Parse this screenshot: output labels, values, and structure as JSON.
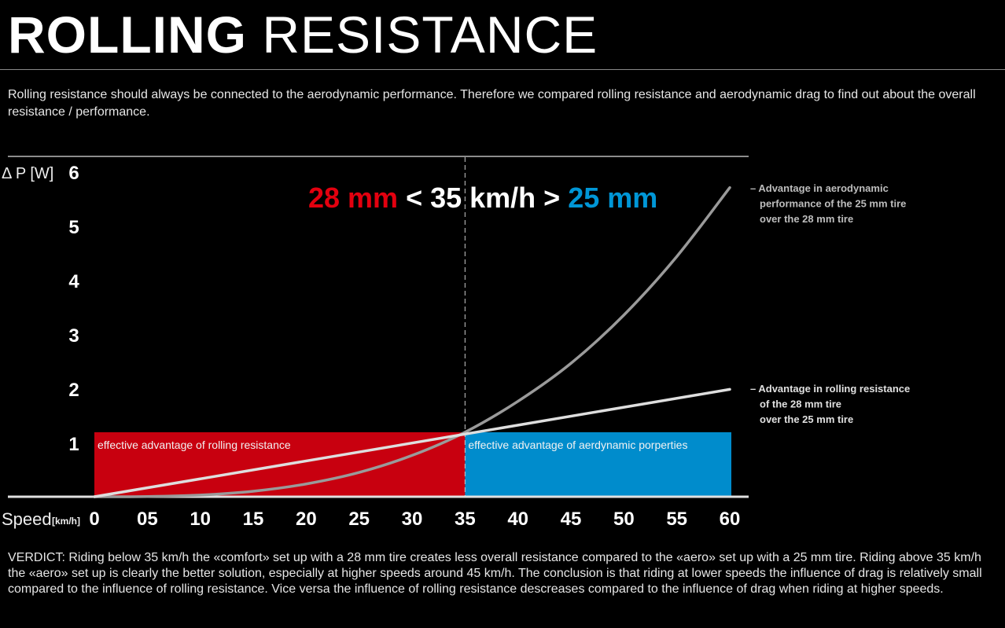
{
  "header": {
    "title_bold": "ROLLING",
    "title_light": "RESISTANCE",
    "intro": "Rolling resistance should always be connected to the aerodynamic performance. Therefore we compared rolling resistance and aerodynamic drag to find out about the overall resistance / performance."
  },
  "chart_data": {
    "type": "line",
    "ylabel": "Δ P [W]",
    "xlabel": "Speed",
    "xlabel_unit": "[km/h]",
    "xlim": [
      0,
      60
    ],
    "ylim": [
      0,
      6
    ],
    "x_ticks": [
      "0",
      "05",
      "10",
      "15",
      "20",
      "25",
      "30",
      "35",
      "40",
      "45",
      "50",
      "55",
      "60"
    ],
    "x_tick_values": [
      0,
      5,
      10,
      15,
      20,
      25,
      30,
      35,
      40,
      45,
      50,
      55,
      60
    ],
    "y_ticks": [
      1,
      2,
      3,
      4,
      5,
      6
    ],
    "grid": false,
    "headline": {
      "left": "28 mm",
      "middle": " < 35 km/h > ",
      "right": "25 mm"
    },
    "threshold_x": 35,
    "regions": [
      {
        "label": "effective advantage of rolling resistance",
        "x0": 0,
        "x1": 35,
        "y0": 0,
        "y1": 1.19,
        "color": "#c8000f"
      },
      {
        "label": "effective advantage of aerdynamic porperties",
        "x0": 35,
        "x1": 60,
        "y0": 0,
        "y1": 1.19,
        "color": "#008ccc"
      }
    ],
    "series": [
      {
        "label": [
          "– Advantage in aerodynamic",
          "performance of the 25 mm tire",
          "over the 28 mm tire"
        ],
        "color": "#9a9a9a",
        "x": [
          0,
          5,
          10,
          15,
          20,
          25,
          30,
          35,
          40,
          45,
          50,
          55,
          60
        ],
        "y": [
          0,
          0.004,
          0.031,
          0.102,
          0.236,
          0.448,
          0.762,
          1.19,
          1.76,
          2.46,
          3.35,
          4.43,
          5.7
        ]
      },
      {
        "label": [
          "– Advantage in rolling resistance",
          "of the 28 mm tire",
          "over the 25 mm tire"
        ],
        "color": "#dedede",
        "x": [
          0,
          60
        ],
        "y": [
          0,
          1.98
        ]
      }
    ],
    "colors": {
      "red": "#e3000f",
      "blue": "#0096d6"
    }
  },
  "footer": {
    "verdict": "VERDICT: Riding below 35 km/h the «comfort» set up with a 28 mm tire creates less overall resistance compared to the «aero» set up with a 25 mm tire. Riding above 35 km/h the «aero» set up is clearly the better solution, especially at higher speeds around 45 km/h. The conclusion is that riding at lower speeds the influence of drag is relatively small compared to the influence of rolling resistance. Vice versa the influence of rolling resistance descreases compared to the influence of drag when riding at higher speeds."
  }
}
